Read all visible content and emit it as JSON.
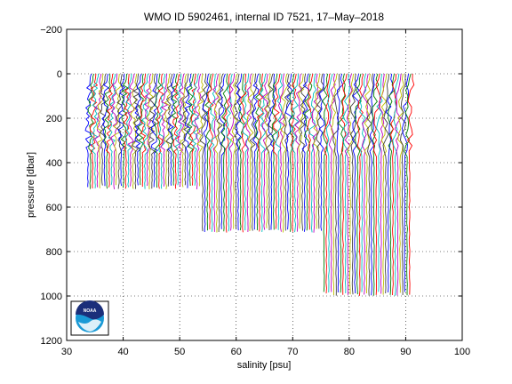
{
  "chart_data": {
    "type": "line",
    "title": "WMO ID 5902461, internal ID 7521, 17–May–2018",
    "xlabel": "salinity [psu]",
    "ylabel": "pressure [dbar]",
    "xlim": [
      30,
      100
    ],
    "ylim": [
      -200,
      1200
    ],
    "y_reversed": true,
    "grid": true,
    "grid_style": "dotted",
    "xticks": [
      "30",
      "40",
      "50",
      "60",
      "70",
      "80",
      "90",
      "100"
    ],
    "yticks": [
      "−200",
      "0",
      "200",
      "400",
      "600",
      "800",
      "1000",
      "1200"
    ],
    "series_colors": [
      "#0000ff",
      "#008000",
      "#ff0000",
      "#00bfbf",
      "#bf00bf",
      "#bfbf00",
      "#404040"
    ],
    "profiles": {
      "description_source": "waterfall of salinity profiles, each offset to the right",
      "segments": [
        {
          "x_start": 34.0,
          "x_end": 54.0,
          "max_pressure": 520
        },
        {
          "x_start": 54.3,
          "x_end": 75.5,
          "max_pressure": 715
        },
        {
          "x_start": 75.8,
          "x_end": 91.0,
          "max_pressure": 1000
        }
      ],
      "profile_spacing": 0.42,
      "top_pressure": 0
    }
  },
  "logo": {
    "text": "NOAA",
    "name": "noaa-logo"
  }
}
